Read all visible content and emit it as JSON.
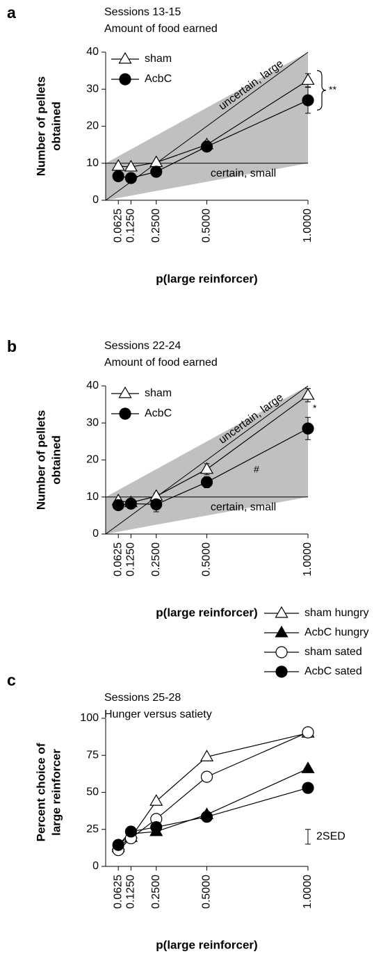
{
  "chart_data": [
    {
      "type": "line",
      "panel": "a",
      "title": [
        "Sessions 13-15",
        "Amount of food earned"
      ],
      "ylabel": [
        "Number of pellets",
        "obtained"
      ],
      "xlabel": "p(large reinforcer)",
      "x": [
        0.0625,
        0.125,
        0.25,
        0.5,
        1
      ],
      "xlim": [
        0,
        1
      ],
      "xticks": [
        {
          "value": 0.0625,
          "label": "0.0625"
        },
        {
          "value": 0.125,
          "label": "0.1250"
        },
        {
          "value": 0.25,
          "label": "0.2500"
        },
        {
          "value": 0.5,
          "label": "0.5000"
        },
        {
          "value": 1,
          "label": "1.0000"
        }
      ],
      "ylim": [
        0,
        40
      ],
      "yticks": [
        0,
        10,
        20,
        30,
        40
      ],
      "series": [
        {
          "name": "sham",
          "color": "#000000",
          "marker": "triangle",
          "filled": false,
          "values": [
            9.2,
            9,
            10.2,
            15,
            32.4
          ],
          "errors": [
            0.5,
            0.5,
            0.6,
            1,
            1.8
          ]
        },
        {
          "name": "AcbC",
          "color": "#000000",
          "marker": "circle",
          "filled": true,
          "values": [
            6.5,
            6,
            7.7,
            14.5,
            27
          ],
          "errors": [
            0.8,
            0.8,
            0.8,
            1.2,
            3.5
          ]
        }
      ],
      "references": [
        {
          "label": "uncertain, large",
          "x": [
            0,
            1
          ],
          "y": [
            0,
            40
          ]
        },
        {
          "label": "certain, small",
          "x": [
            0,
            1
          ],
          "y": [
            10,
            10
          ]
        }
      ],
      "shade_color": "#c0c0c0",
      "annotations": [
        "**"
      ]
    },
    {
      "type": "line",
      "panel": "b",
      "title": [
        "Sessions 22-24",
        "Amount of food earned"
      ],
      "ylabel": [
        "Number of pellets",
        "obtained"
      ],
      "xlabel": "p(large reinforcer)",
      "x": [
        0.0625,
        0.125,
        0.25,
        0.5,
        1
      ],
      "xlim": [
        0,
        1
      ],
      "xticks": [
        {
          "value": 0.0625,
          "label": "0.0625"
        },
        {
          "value": 0.125,
          "label": "0.1250"
        },
        {
          "value": 0.25,
          "label": "0.2500"
        },
        {
          "value": 0.5,
          "label": "0.5000"
        },
        {
          "value": 1,
          "label": "1.0000"
        }
      ],
      "ylim": [
        0,
        40
      ],
      "yticks": [
        0,
        10,
        20,
        30,
        40
      ],
      "series": [
        {
          "name": "sham",
          "color": "#000000",
          "marker": "triangle",
          "filled": false,
          "values": [
            9,
            8.5,
            10.2,
            17.5,
            37.5
          ],
          "errors": [
            0.5,
            0.5,
            0.8,
            1.5,
            1.8
          ]
        },
        {
          "name": "AcbC",
          "color": "#000000",
          "marker": "circle",
          "filled": true,
          "values": [
            7.8,
            8.2,
            8,
            14,
            28.5
          ],
          "errors": [
            0.8,
            0.8,
            2,
            1.5,
            3
          ]
        }
      ],
      "references": [
        {
          "label": "uncertain, large",
          "x": [
            0,
            1
          ],
          "y": [
            0,
            40
          ]
        },
        {
          "label": "certain, small",
          "x": [
            0,
            1
          ],
          "y": [
            10,
            10
          ]
        }
      ],
      "shade_color": "#c0c0c0",
      "annotations": [
        "*",
        "#"
      ]
    },
    {
      "type": "line",
      "panel": "c",
      "title": [
        "Sessions 25-28",
        "Hunger versus satiety"
      ],
      "ylabel": [
        "Percent choice of",
        "large reinforcer"
      ],
      "xlabel": "p(large reinforcer)",
      "x": [
        0.0625,
        0.125,
        0.25,
        0.5,
        1
      ],
      "xlim": [
        0,
        1
      ],
      "xticks": [
        {
          "value": 0.0625,
          "label": "0.0625"
        },
        {
          "value": 0.125,
          "label": "0.1250"
        },
        {
          "value": 0.25,
          "label": "0.2500"
        },
        {
          "value": 0.5,
          "label": "0.5000"
        },
        {
          "value": 1,
          "label": "1.0000"
        }
      ],
      "ylim": [
        0,
        100
      ],
      "yticks": [
        0,
        25,
        50,
        75,
        100
      ],
      "series": [
        {
          "name": "sham hungry",
          "color": "#000000",
          "marker": "triangle",
          "filled": false,
          "values": [
            12.7,
            19.6,
            44,
            74,
            90
          ]
        },
        {
          "name": "AcbC hungry",
          "color": "#000000",
          "marker": "triangle",
          "filled": true,
          "values": [
            14,
            22,
            23.5,
            35,
            66
          ]
        },
        {
          "name": "sham sated",
          "color": "#000000",
          "marker": "circle",
          "filled": false,
          "values": [
            11,
            19,
            32,
            60.5,
            90.5
          ]
        },
        {
          "name": "AcbC sated",
          "color": "#000000",
          "marker": "circle",
          "filled": true,
          "values": [
            14.5,
            23.5,
            26.5,
            33.5,
            53
          ]
        }
      ],
      "sed": {
        "label": "2SED",
        "range": [
          15,
          25
        ]
      }
    }
  ]
}
